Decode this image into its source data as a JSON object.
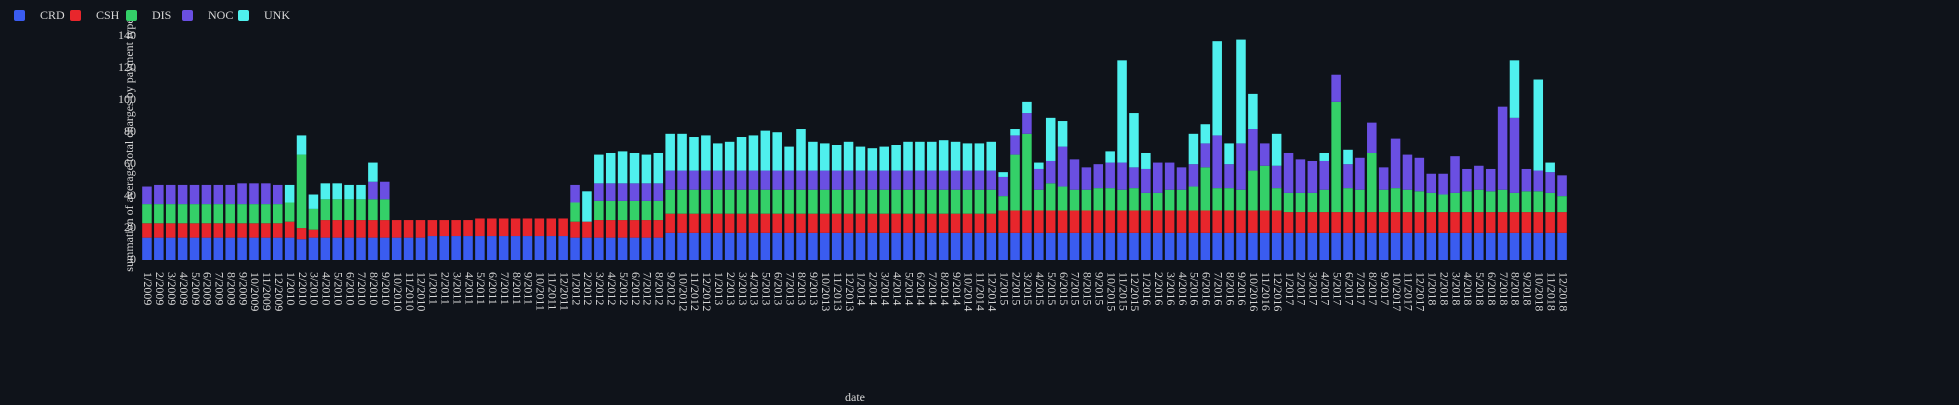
{
  "chart_data": {
    "type": "stacked_bar",
    "x_label": "date",
    "y_label": "summation of average total charges by payment type",
    "ylim": [
      0,
      144
    ],
    "yticks": [
      0,
      20,
      40,
      60,
      80,
      100,
      120,
      140
    ],
    "legend": "top-left",
    "categories": [
      "1/2009",
      "2/2009",
      "3/2009",
      "4/2009",
      "5/2009",
      "6/2009",
      "7/2009",
      "8/2009",
      "9/2009",
      "10/2009",
      "11/2009",
      "12/2009",
      "1/2010",
      "2/2010",
      "3/2010",
      "4/2010",
      "5/2010",
      "6/2010",
      "7/2010",
      "8/2010",
      "9/2010",
      "10/2010",
      "11/2010",
      "12/2010",
      "1/2011",
      "2/2011",
      "3/2011",
      "4/2011",
      "5/2011",
      "6/2011",
      "7/2011",
      "8/2011",
      "9/2011",
      "10/2011",
      "11/2011",
      "12/2011",
      "1/2012",
      "2/2012",
      "3/2012",
      "4/2012",
      "5/2012",
      "6/2012",
      "7/2012",
      "8/2012",
      "9/2012",
      "10/2012",
      "11/2012",
      "12/2012",
      "1/2013",
      "2/2013",
      "3/2013",
      "4/2013",
      "5/2013",
      "6/2013",
      "7/2013",
      "8/2013",
      "9/2013",
      "10/2013",
      "11/2013",
      "12/2013",
      "1/2014",
      "2/2014",
      "3/2014",
      "4/2014",
      "5/2014",
      "6/2014",
      "7/2014",
      "8/2014",
      "9/2014",
      "10/2014",
      "11/2014",
      "12/2014",
      "1/2015",
      "2/2015",
      "3/2015",
      "4/2015",
      "5/2015",
      "6/2015",
      "7/2015",
      "8/2015",
      "9/2015",
      "10/2015",
      "11/2015",
      "12/2015",
      "1/2016",
      "2/2016",
      "3/2016",
      "4/2016",
      "5/2016",
      "6/2016",
      "7/2016",
      "8/2016",
      "9/2016",
      "10/2016",
      "11/2016",
      "12/2016",
      "1/2017",
      "2/2017",
      "3/2017",
      "4/2017",
      "5/2017",
      "6/2017",
      "7/2017",
      "8/2017",
      "9/2017",
      "10/2017",
      "11/2017",
      "12/2017",
      "1/2018",
      "2/2018",
      "3/2018",
      "4/2018",
      "5/2018",
      "6/2018",
      "7/2018",
      "8/2018",
      "9/2018",
      "10/2018",
      "11/2018",
      "12/2018"
    ],
    "series": [
      {
        "name": "CRD",
        "color": "#3a5cf0",
        "values": [
          14,
          14,
          14,
          14,
          14,
          14,
          14,
          14,
          14,
          14,
          14,
          14,
          14,
          13,
          14,
          14,
          14,
          14,
          14,
          14,
          14,
          14,
          14,
          14,
          15,
          15,
          15,
          15,
          15,
          15,
          15,
          15,
          15,
          15,
          15,
          15,
          14,
          14,
          14,
          14,
          14,
          14,
          14,
          14,
          17,
          17,
          17,
          17,
          17,
          17,
          17,
          17,
          17,
          17,
          17,
          17,
          17,
          17,
          17,
          17,
          17,
          17,
          17,
          17,
          17,
          17,
          17,
          17,
          17,
          17,
          17,
          17,
          17,
          17,
          17,
          17,
          17,
          17,
          17,
          17,
          17,
          17,
          17,
          17,
          17,
          17,
          17,
          17,
          17,
          17,
          17,
          17,
          17,
          17,
          17,
          17,
          17,
          17,
          17,
          17,
          17,
          17,
          17,
          17,
          17,
          17,
          17,
          17,
          17,
          17,
          17,
          17,
          17,
          17,
          17,
          17,
          17,
          17,
          17,
          17
        ]
      },
      {
        "name": "CSH",
        "color": "#e8262c",
        "values": [
          9,
          9,
          9,
          9,
          9,
          9,
          9,
          9,
          9,
          9,
          9,
          9,
          10,
          7,
          5,
          11,
          11,
          11,
          11,
          11,
          11,
          11,
          11,
          11,
          10,
          10,
          10,
          10,
          11,
          11,
          11,
          11,
          11,
          11,
          11,
          11,
          10,
          10,
          11,
          11,
          11,
          11,
          11,
          11,
          12,
          12,
          12,
          12,
          12,
          12,
          12,
          12,
          12,
          12,
          12,
          12,
          12,
          12,
          12,
          12,
          12,
          12,
          12,
          12,
          12,
          12,
          12,
          12,
          12,
          12,
          12,
          12,
          14,
          14,
          14,
          14,
          14,
          14,
          14,
          14,
          14,
          14,
          14,
          14,
          14,
          14,
          14,
          14,
          14,
          14,
          14,
          14,
          14,
          14,
          14,
          14,
          13,
          13,
          13,
          13,
          13,
          13,
          13,
          13,
          13,
          13,
          13,
          13,
          13,
          13,
          13,
          13,
          13,
          13,
          13,
          13,
          13,
          13,
          13,
          13
        ]
      },
      {
        "name": "DIS",
        "color": "#34d068",
        "values": [
          12,
          12,
          12,
          12,
          12,
          12,
          12,
          12,
          12,
          12,
          12,
          12,
          12,
          46,
          13,
          13,
          13,
          13,
          13,
          13,
          13,
          0,
          0,
          0,
          0,
          0,
          0,
          0,
          0,
          0,
          0,
          0,
          0,
          0,
          0,
          0,
          12,
          0,
          12,
          12,
          12,
          12,
          12,
          12,
          15,
          15,
          15,
          15,
          15,
          15,
          15,
          15,
          15,
          15,
          15,
          15,
          15,
          15,
          15,
          15,
          15,
          15,
          15,
          15,
          15,
          15,
          15,
          15,
          15,
          15,
          15,
          15,
          9,
          35,
          48,
          13,
          17,
          15,
          13,
          13,
          14,
          14,
          13,
          14,
          11,
          11,
          13,
          13,
          15,
          27,
          14,
          14,
          13,
          25,
          28,
          14,
          12,
          12,
          12,
          14,
          69,
          15,
          14,
          37,
          14,
          15,
          14,
          13,
          12,
          11,
          12,
          13,
          14,
          13,
          14,
          12,
          13,
          13,
          12,
          10
        ]
      },
      {
        "name": "NOC",
        "color": "#6a4fe2",
        "values": [
          11,
          12,
          12,
          12,
          12,
          12,
          12,
          12,
          13,
          13,
          13,
          12,
          0,
          0,
          0,
          0,
          0,
          0,
          0,
          11,
          11,
          0,
          0,
          0,
          0,
          0,
          0,
          0,
          0,
          0,
          0,
          0,
          0,
          0,
          0,
          0,
          11,
          0,
          11,
          11,
          11,
          11,
          11,
          11,
          12,
          12,
          12,
          12,
          12,
          12,
          12,
          12,
          12,
          12,
          12,
          12,
          12,
          12,
          12,
          12,
          12,
          12,
          12,
          12,
          12,
          12,
          12,
          12,
          12,
          12,
          12,
          12,
          12,
          12,
          13,
          13,
          14,
          25,
          19,
          14,
          15,
          16,
          17,
          13,
          15,
          19,
          17,
          14,
          14,
          15,
          33,
          15,
          29,
          26,
          14,
          14,
          25,
          21,
          20,
          18,
          17,
          15,
          20,
          19,
          14,
          31,
          22,
          21,
          12,
          13,
          23,
          14,
          15,
          14,
          52,
          47,
          14,
          13,
          13,
          13
        ]
      },
      {
        "name": "UNK",
        "color": "#4ff0ee",
        "values": [
          0,
          0,
          0,
          0,
          0,
          0,
          0,
          0,
          0,
          0,
          0,
          0,
          11,
          12,
          9,
          10,
          10,
          9,
          9,
          12,
          0,
          0,
          0,
          0,
          0,
          0,
          0,
          0,
          0,
          0,
          0,
          0,
          0,
          0,
          0,
          0,
          0,
          19,
          18,
          19,
          20,
          19,
          18,
          19,
          23,
          23,
          21,
          22,
          17,
          18,
          21,
          22,
          25,
          24,
          15,
          26,
          18,
          17,
          16,
          18,
          15,
          14,
          15,
          16,
          18,
          18,
          18,
          19,
          18,
          17,
          17,
          18,
          3,
          4,
          7,
          4,
          27,
          16,
          0,
          0,
          0,
          7,
          64,
          34,
          10,
          0,
          0,
          0,
          19,
          12,
          59,
          13,
          65,
          22,
          0,
          20,
          0,
          0,
          0,
          5,
          0,
          9,
          0,
          0,
          0,
          0,
          0,
          0,
          0,
          0,
          0,
          0,
          0,
          0,
          0,
          36,
          0,
          57,
          6,
          0
        ]
      }
    ]
  }
}
